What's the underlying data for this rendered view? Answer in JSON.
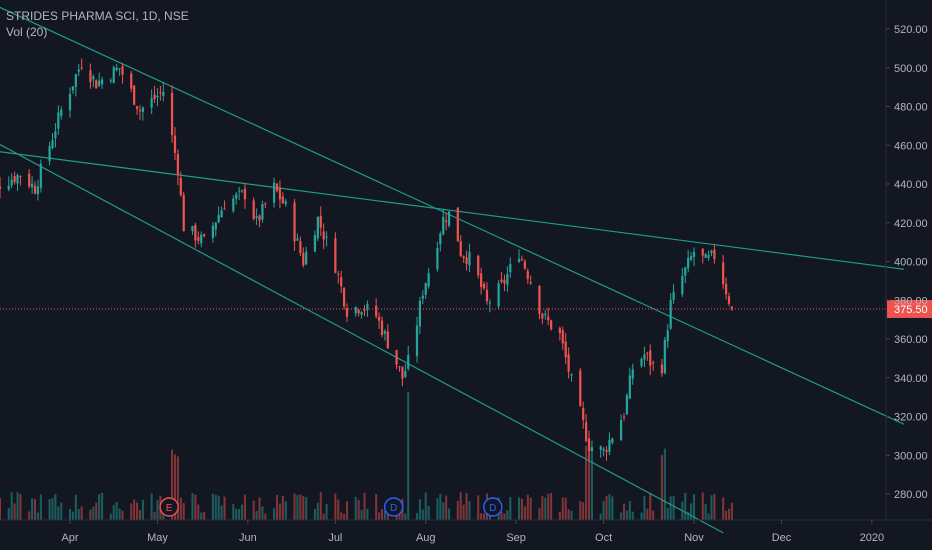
{
  "header": {
    "symbol": "STRIDES PHARMA SCI, 1D, NSE",
    "volume_indicator": "Vol (20)"
  },
  "colors": {
    "background": "#131722",
    "up": "#26a69a",
    "down": "#ef5350",
    "trendline": "#1f9c88",
    "price_line": "#ef5350",
    "axis_text": "#b2b5be",
    "event_marker_earnings": "#ef5350",
    "event_marker_dividend": "#2962ff"
  },
  "chart_data": {
    "type": "candlestick",
    "ylim": [
      260,
      528
    ],
    "y_ticks": [
      "280.00",
      "300.00",
      "320.00",
      "340.00",
      "360.00",
      "380.00",
      "400.00",
      "420.00",
      "440.00",
      "460.00",
      "480.00",
      "500.00",
      "520.00"
    ],
    "x_ticks": [
      "Apr",
      "May",
      "Jun",
      "Jul",
      "Aug",
      "Sep",
      "Oct",
      "Nov",
      "Dec",
      "2020"
    ],
    "last_price": "375.50",
    "price_path": [
      {
        "date": "2019-03-01",
        "price": 435
      },
      {
        "date": "2019-03-08",
        "price": 440
      },
      {
        "date": "2019-03-15",
        "price": 445
      },
      {
        "date": "2019-03-20",
        "price": 438
      },
      {
        "date": "2019-03-25",
        "price": 460
      },
      {
        "date": "2019-03-29",
        "price": 478
      },
      {
        "date": "2019-04-05",
        "price": 503
      },
      {
        "date": "2019-04-10",
        "price": 492
      },
      {
        "date": "2019-04-18",
        "price": 500
      },
      {
        "date": "2019-04-25",
        "price": 478
      },
      {
        "date": "2019-05-03",
        "price": 488
      },
      {
        "date": "2019-05-08",
        "price": 448
      },
      {
        "date": "2019-05-10",
        "price": 418
      },
      {
        "date": "2019-05-17",
        "price": 410
      },
      {
        "date": "2019-05-24",
        "price": 430
      },
      {
        "date": "2019-05-31",
        "price": 435
      },
      {
        "date": "2019-06-04",
        "price": 420
      },
      {
        "date": "2019-06-10",
        "price": 438
      },
      {
        "date": "2019-06-14",
        "price": 428
      },
      {
        "date": "2019-06-20",
        "price": 400
      },
      {
        "date": "2019-06-25",
        "price": 422
      },
      {
        "date": "2019-07-01",
        "price": 398
      },
      {
        "date": "2019-07-05",
        "price": 375
      },
      {
        "date": "2019-07-10",
        "price": 377
      },
      {
        "date": "2019-07-15",
        "price": 372
      },
      {
        "date": "2019-07-20",
        "price": 355
      },
      {
        "date": "2019-07-24",
        "price": 340
      },
      {
        "date": "2019-07-27",
        "price": 352
      },
      {
        "date": "2019-07-31",
        "price": 385
      },
      {
        "date": "2019-08-03",
        "price": 400
      },
      {
        "date": "2019-08-07",
        "price": 422
      },
      {
        "date": "2019-08-10",
        "price": 426
      },
      {
        "date": "2019-08-13",
        "price": 405
      },
      {
        "date": "2019-08-17",
        "price": 400
      },
      {
        "date": "2019-08-22",
        "price": 378
      },
      {
        "date": "2019-08-27",
        "price": 387
      },
      {
        "date": "2019-09-02",
        "price": 405
      },
      {
        "date": "2019-09-06",
        "price": 390
      },
      {
        "date": "2019-09-10",
        "price": 372
      },
      {
        "date": "2019-09-16",
        "price": 362
      },
      {
        "date": "2019-09-20",
        "price": 338
      },
      {
        "date": "2019-09-26",
        "price": 305
      },
      {
        "date": "2019-10-01",
        "price": 302
      },
      {
        "date": "2019-10-05",
        "price": 313
      },
      {
        "date": "2019-10-08",
        "price": 322
      },
      {
        "date": "2019-10-11",
        "price": 345
      },
      {
        "date": "2019-10-15",
        "price": 352
      },
      {
        "date": "2019-10-18",
        "price": 346
      },
      {
        "date": "2019-10-21",
        "price": 346
      },
      {
        "date": "2019-10-24",
        "price": 378
      },
      {
        "date": "2019-10-28",
        "price": 392
      },
      {
        "date": "2019-11-01",
        "price": 405
      },
      {
        "date": "2019-11-05",
        "price": 400
      },
      {
        "date": "2019-11-08",
        "price": 403
      },
      {
        "date": "2019-11-11",
        "price": 390
      },
      {
        "date": "2019-11-14",
        "price": 375.5
      }
    ],
    "volume_spikes": [
      {
        "date": "2019-05-07",
        "volume": "high"
      },
      {
        "date": "2019-07-27",
        "volume": "very high"
      },
      {
        "date": "2019-09-26",
        "volume": "high"
      },
      {
        "date": "2019-10-21",
        "volume": "high"
      }
    ],
    "trendlines": [
      {
        "name": "upper falling",
        "from": {
          "date": "2019-03-01",
          "price": 536
        },
        "to": {
          "date": "2020-01-12",
          "price": 316
        }
      },
      {
        "name": "lower falling",
        "from": {
          "date": "2019-03-01",
          "price": 466
        },
        "to": {
          "date": "2019-11-11",
          "price": 260
        }
      },
      {
        "name": "flat resistance",
        "from": {
          "date": "2019-03-01",
          "price": 458
        },
        "to": {
          "date": "2020-01-12",
          "price": 396
        }
      }
    ],
    "events": [
      {
        "type": "earnings",
        "label": "E",
        "date": "2019-05-05"
      },
      {
        "type": "dividend",
        "label": "D",
        "date": "2019-07-21"
      },
      {
        "type": "dividend",
        "label": "D",
        "date": "2019-08-24"
      }
    ]
  }
}
